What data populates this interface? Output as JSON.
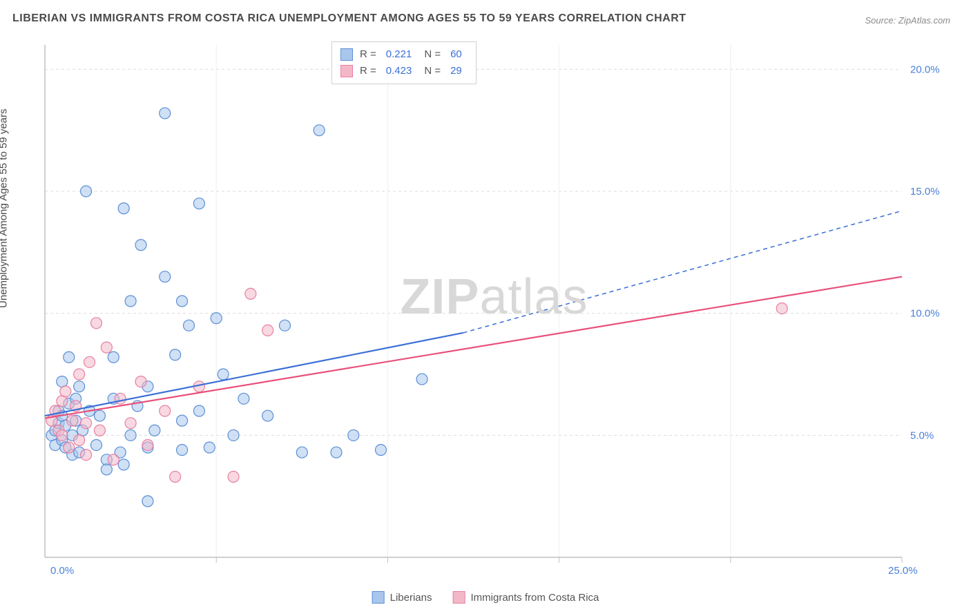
{
  "title": "LIBERIAN VS IMMIGRANTS FROM COSTA RICA UNEMPLOYMENT AMONG AGES 55 TO 59 YEARS CORRELATION CHART",
  "source": "Source: ZipAtlas.com",
  "ylabel": "Unemployment Among Ages 55 to 59 years",
  "watermark_strong": "ZIP",
  "watermark_rest": "atlas",
  "chart": {
    "type": "scatter-with-regression",
    "background_color": "#ffffff",
    "grid_color": "#dcdcdc",
    "axis_color": "#c0c0c0",
    "xlim": [
      0,
      25
    ],
    "ylim": [
      0,
      21
    ],
    "x_ticks": [
      0,
      5,
      10,
      15,
      20,
      25
    ],
    "y_ticks": [
      5,
      10,
      15,
      20
    ],
    "x_tick_labels": [
      "0.0%",
      "",
      "",
      "",
      "",
      "25.0%"
    ],
    "y_tick_labels": [
      "5.0%",
      "10.0%",
      "15.0%",
      "20.0%"
    ],
    "tick_label_color": "#4a7fd8",
    "tick_fontsize": 15,
    "marker_radius": 8,
    "marker_opacity": 0.55,
    "series": [
      {
        "name": "Liberians",
        "fill": "#a9c7ec",
        "stroke": "#5a8fd6",
        "reg_color": "#3b6fd6",
        "reg_start": [
          0,
          5.8
        ],
        "reg_solid_end": [
          12.2,
          9.2
        ],
        "reg_dash_end": [
          25,
          14.2
        ],
        "reg_width": 2.2,
        "points": [
          [
            0.2,
            5.0
          ],
          [
            0.3,
            5.2
          ],
          [
            0.3,
            4.6
          ],
          [
            0.4,
            5.5
          ],
          [
            0.4,
            6.0
          ],
          [
            0.5,
            4.8
          ],
          [
            0.5,
            5.8
          ],
          [
            0.5,
            7.2
          ],
          [
            0.6,
            4.5
          ],
          [
            0.6,
            5.4
          ],
          [
            0.7,
            6.3
          ],
          [
            0.7,
            8.2
          ],
          [
            0.8,
            4.2
          ],
          [
            0.8,
            5.0
          ],
          [
            0.9,
            5.6
          ],
          [
            0.9,
            6.5
          ],
          [
            1.0,
            4.3
          ],
          [
            1.0,
            7.0
          ],
          [
            1.1,
            5.2
          ],
          [
            1.2,
            15.0
          ],
          [
            1.3,
            6.0
          ],
          [
            1.5,
            4.6
          ],
          [
            1.6,
            5.8
          ],
          [
            1.8,
            4.0
          ],
          [
            2.0,
            6.5
          ],
          [
            2.0,
            8.2
          ],
          [
            2.2,
            4.3
          ],
          [
            2.3,
            14.3
          ],
          [
            2.5,
            10.5
          ],
          [
            2.5,
            5.0
          ],
          [
            2.7,
            6.2
          ],
          [
            2.8,
            12.8
          ],
          [
            3.0,
            4.5
          ],
          [
            3.0,
            7.0
          ],
          [
            3.2,
            5.2
          ],
          [
            3.5,
            18.2
          ],
          [
            3.5,
            11.5
          ],
          [
            3.8,
            8.3
          ],
          [
            4.0,
            10.5
          ],
          [
            4.0,
            5.6
          ],
          [
            4.2,
            9.5
          ],
          [
            4.5,
            14.5
          ],
          [
            4.5,
            6.0
          ],
          [
            4.8,
            4.5
          ],
          [
            5.0,
            9.8
          ],
          [
            5.2,
            7.5
          ],
          [
            5.5,
            5.0
          ],
          [
            5.8,
            6.5
          ],
          [
            6.5,
            5.8
          ],
          [
            7.0,
            9.5
          ],
          [
            7.5,
            4.3
          ],
          [
            8.0,
            17.5
          ],
          [
            8.5,
            4.3
          ],
          [
            9.0,
            5.0
          ],
          [
            9.8,
            4.4
          ],
          [
            11.0,
            7.3
          ],
          [
            3.0,
            2.3
          ],
          [
            1.8,
            3.6
          ],
          [
            2.3,
            3.8
          ],
          [
            4.0,
            4.4
          ]
        ],
        "R": "0.221",
        "N": "60"
      },
      {
        "name": "Immigrants from Costa Rica",
        "fill": "#f3b8c8",
        "stroke": "#e87fa0",
        "reg_color": "#e94f7a",
        "reg_start": [
          0,
          5.7
        ],
        "reg_solid_end": [
          25,
          11.5
        ],
        "reg_dash_end": null,
        "reg_width": 2.2,
        "points": [
          [
            0.2,
            5.6
          ],
          [
            0.3,
            6.0
          ],
          [
            0.4,
            5.2
          ],
          [
            0.5,
            6.4
          ],
          [
            0.5,
            5.0
          ],
          [
            0.6,
            6.8
          ],
          [
            0.7,
            4.5
          ],
          [
            0.8,
            5.6
          ],
          [
            0.9,
            6.2
          ],
          [
            1.0,
            4.8
          ],
          [
            1.0,
            7.5
          ],
          [
            1.2,
            5.5
          ],
          [
            1.3,
            8.0
          ],
          [
            1.5,
            9.6
          ],
          [
            1.6,
            5.2
          ],
          [
            1.8,
            8.6
          ],
          [
            2.0,
            4.0
          ],
          [
            2.2,
            6.5
          ],
          [
            2.5,
            5.5
          ],
          [
            2.8,
            7.2
          ],
          [
            3.0,
            4.6
          ],
          [
            3.5,
            6.0
          ],
          [
            3.8,
            3.3
          ],
          [
            4.5,
            7.0
          ],
          [
            5.5,
            3.3
          ],
          [
            6.0,
            10.8
          ],
          [
            6.5,
            9.3
          ],
          [
            21.5,
            10.2
          ],
          [
            1.2,
            4.2
          ]
        ],
        "R": "0.423",
        "N": "29"
      }
    ]
  },
  "stats_labels": {
    "R": "R  =",
    "N": "N  ="
  },
  "legend_blue": "Liberians",
  "legend_pink": "Immigrants from Costa Rica"
}
